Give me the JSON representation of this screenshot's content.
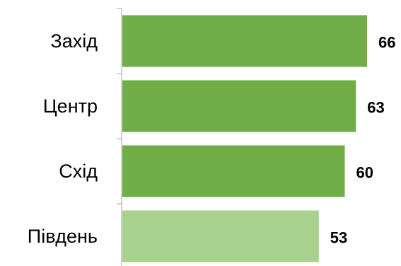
{
  "chart_data": {
    "type": "bar",
    "orientation": "horizontal",
    "categories": [
      "Захід",
      "Центр",
      "Схід",
      "Південь"
    ],
    "values": [
      66,
      63,
      60,
      53
    ],
    "value_labels": [
      "66",
      "63",
      "60",
      "53"
    ],
    "bar_colors": [
      "#70ad47",
      "#70ad47",
      "#70ad47",
      "#a9d18e"
    ],
    "title": "",
    "xlabel": "",
    "ylabel": "",
    "xlim": [
      0,
      73
    ],
    "grid": false,
    "legend": "none"
  }
}
